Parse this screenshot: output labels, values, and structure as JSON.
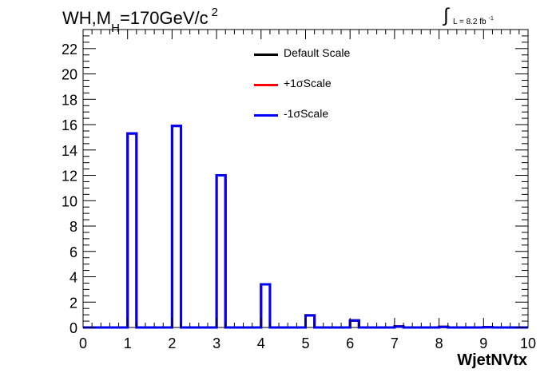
{
  "title": {
    "prefix": "WH,M",
    "sub": "H",
    "suffix": "=170GeV/c",
    "sup": "2"
  },
  "lumi": {
    "integral": "∫",
    "text": "L = 8.2 fb",
    "sup": "-1"
  },
  "chart_data": {
    "type": "line",
    "xlabel": "WjetNVtx",
    "ylabel": "",
    "xlim": [
      0,
      10
    ],
    "ylim": [
      0,
      23.5
    ],
    "x_ticks": [
      "0",
      "1",
      "2",
      "3",
      "4",
      "5",
      "6",
      "7",
      "8",
      "9",
      "10"
    ],
    "y_ticks": [
      "0",
      "2",
      "4",
      "6",
      "8",
      "10",
      "12",
      "14",
      "16",
      "18",
      "20",
      "22"
    ],
    "bin_width": 0.2,
    "bin_edges": [
      0,
      0.2,
      0.4,
      0.6,
      0.8,
      1.0,
      1.2,
      1.4,
      1.6,
      1.8,
      2.0,
      2.2,
      2.4,
      2.6,
      2.8,
      3.0,
      3.2,
      3.4,
      3.6,
      3.8,
      4.0,
      4.2,
      4.4,
      4.6,
      4.8,
      5.0,
      5.2,
      5.4,
      5.6,
      5.8,
      6.0,
      6.2,
      6.4,
      6.6,
      6.8,
      7.0,
      7.2,
      7.4,
      7.6,
      7.8,
      8.0,
      8.2,
      8.4,
      8.6,
      8.8,
      9.0,
      9.2,
      9.4,
      9.6,
      9.8,
      10.0
    ],
    "series": [
      {
        "name": "Default Scale",
        "color": "#000000",
        "values": [
          0,
          0,
          0,
          0,
          0,
          15.3,
          0,
          0,
          0,
          0,
          15.9,
          0,
          0,
          0,
          0,
          12.0,
          0,
          0,
          0,
          0,
          3.4,
          0,
          0,
          0,
          0,
          0.95,
          0,
          0,
          0,
          0,
          0.55,
          0,
          0,
          0,
          0,
          0.08,
          0,
          0,
          0,
          0,
          0.05,
          0,
          0,
          0,
          0,
          0.02,
          0,
          0,
          0,
          0
        ]
      },
      {
        "name": "+1σScale",
        "color": "#ff0000",
        "values": [
          0,
          0,
          0,
          0,
          0,
          15.3,
          0,
          0,
          0,
          0,
          15.9,
          0,
          0,
          0,
          0,
          12.0,
          0,
          0,
          0,
          0,
          3.4,
          0,
          0,
          0,
          0,
          0.95,
          0,
          0,
          0,
          0,
          0.55,
          0,
          0,
          0,
          0,
          0.08,
          0,
          0,
          0,
          0,
          0.05,
          0,
          0,
          0,
          0,
          0.02,
          0,
          0,
          0,
          0
        ]
      },
      {
        "name": "-1σScale",
        "color": "#0000ff",
        "values": [
          0,
          0,
          0,
          0,
          0,
          15.3,
          0,
          0,
          0,
          0,
          15.9,
          0,
          0,
          0,
          0,
          12.0,
          0,
          0,
          0,
          0,
          3.4,
          0,
          0,
          0,
          0,
          0.95,
          0,
          0,
          0,
          0,
          0.55,
          0,
          0,
          0,
          0,
          0.08,
          0,
          0,
          0,
          0,
          0.05,
          0,
          0,
          0,
          0,
          0.02,
          0,
          0,
          0,
          0
        ]
      }
    ],
    "legend_position": "top-center",
    "grid": false
  }
}
